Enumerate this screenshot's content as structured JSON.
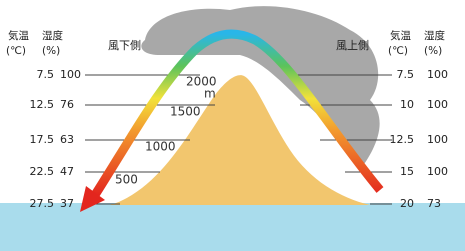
{
  "left": {
    "header": {
      "cols": [
        "気温",
        "湿度"
      ],
      "units": [
        "(℃)",
        "(%)"
      ]
    },
    "side": "風下側",
    "rows": [
      [
        "7.5",
        "100"
      ],
      [
        "12.5",
        "76"
      ],
      [
        "17.5",
        "63"
      ],
      [
        "22.5",
        "47"
      ],
      [
        "27.5",
        "37"
      ]
    ]
  },
  "right": {
    "header": {
      "cols": [
        "気温",
        "湿度"
      ],
      "units": [
        "(℃)",
        "(%)"
      ]
    },
    "side": "風上側",
    "rows": [
      [
        "7.5",
        "100"
      ],
      [
        "10",
        "100"
      ],
      [
        "12.5",
        "100"
      ],
      [
        "15",
        "100"
      ],
      [
        "20",
        "73"
      ]
    ]
  },
  "altitudes": [
    "2000",
    "m",
    "1500",
    "1000",
    "500"
  ]
}
